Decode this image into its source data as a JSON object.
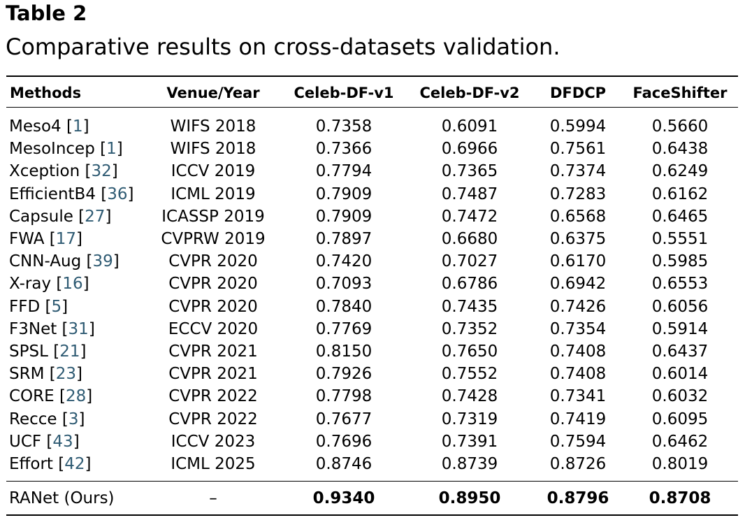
{
  "table": {
    "label": "Table 2",
    "caption": "Comparative results on cross-datasets validation.",
    "headers": [
      "Methods",
      "Venue/Year",
      "Celeb-DF-v1",
      "Celeb-DF-v2",
      "DFDCP",
      "FaceShifter"
    ],
    "rows": [
      {
        "method": "Meso4",
        "ref": "1",
        "venue": "WIFS 2018",
        "v1": "0.7358",
        "v2": "0.6091",
        "dfdcp": "0.5994",
        "fs": "0.5660"
      },
      {
        "method": "MesoIncep",
        "ref": "1",
        "venue": "WIFS 2018",
        "v1": "0.7366",
        "v2": "0.6966",
        "dfdcp": "0.7561",
        "fs": "0.6438"
      },
      {
        "method": "Xception",
        "ref": "32",
        "venue": "ICCV 2019",
        "v1": "0.7794",
        "v2": "0.7365",
        "dfdcp": "0.7374",
        "fs": "0.6249"
      },
      {
        "method": "EfficientB4",
        "ref": "36",
        "venue": "ICML 2019",
        "v1": "0.7909",
        "v2": "0.7487",
        "dfdcp": "0.7283",
        "fs": "0.6162"
      },
      {
        "method": "Capsule",
        "ref": "27",
        "venue": "ICASSP 2019",
        "v1": "0.7909",
        "v2": "0.7472",
        "dfdcp": "0.6568",
        "fs": "0.6465"
      },
      {
        "method": "FWA",
        "ref": "17",
        "venue": "CVPRW 2019",
        "v1": "0.7897",
        "v2": "0.6680",
        "dfdcp": "0.6375",
        "fs": "0.5551"
      },
      {
        "method": "CNN-Aug",
        "ref": "39",
        "venue": "CVPR 2020",
        "v1": "0.7420",
        "v2": "0.7027",
        "dfdcp": "0.6170",
        "fs": "0.5985"
      },
      {
        "method": "X-ray",
        "ref": "16",
        "venue": "CVPR 2020",
        "v1": "0.7093",
        "v2": "0.6786",
        "dfdcp": "0.6942",
        "fs": "0.6553"
      },
      {
        "method": "FFD",
        "ref": "5",
        "venue": "CVPR 2020",
        "v1": "0.7840",
        "v2": "0.7435",
        "dfdcp": "0.7426",
        "fs": "0.6056"
      },
      {
        "method": "F3Net",
        "ref": "31",
        "venue": "ECCV 2020",
        "v1": "0.7769",
        "v2": "0.7352",
        "dfdcp": "0.7354",
        "fs": "0.5914"
      },
      {
        "method": "SPSL",
        "ref": "21",
        "venue": "CVPR 2021",
        "v1": "0.8150",
        "v2": "0.7650",
        "dfdcp": "0.7408",
        "fs": "0.6437"
      },
      {
        "method": "SRM",
        "ref": "23",
        "venue": "CVPR 2021",
        "v1": "0.7926",
        "v2": "0.7552",
        "dfdcp": "0.7408",
        "fs": "0.6014"
      },
      {
        "method": "CORE",
        "ref": "28",
        "venue": "CVPR 2022",
        "v1": "0.7798",
        "v2": "0.7428",
        "dfdcp": "0.7341",
        "fs": "0.6032"
      },
      {
        "method": "Recce",
        "ref": "3",
        "venue": "CVPR 2022",
        "v1": "0.7677",
        "v2": "0.7319",
        "dfdcp": "0.7419",
        "fs": "0.6095"
      },
      {
        "method": "UCF",
        "ref": "43",
        "venue": "ICCV 2023",
        "v1": "0.7696",
        "v2": "0.7391",
        "dfdcp": "0.7594",
        "fs": "0.6462"
      },
      {
        "method": "Effort",
        "ref": "42",
        "venue": "ICML 2025",
        "v1": "0.8746",
        "v2": "0.8739",
        "dfdcp": "0.8726",
        "fs": "0.8019"
      }
    ],
    "ours": {
      "method": "RANet (Ours)",
      "venue": "–",
      "v1": "0.9340",
      "v2": "0.8950",
      "dfdcp": "0.8796",
      "fs": "0.8708"
    }
  }
}
